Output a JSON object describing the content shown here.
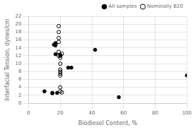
{
  "chart_data": {
    "type": "scatter",
    "xlabel": "Biodiesel Content, %",
    "ylabel": "Interfacial Tension, dynes/cm",
    "series": [
      {
        "name": "All samples",
        "color": "#000000",
        "marker": "filled",
        "x": [
          10,
          15,
          15,
          16,
          17,
          17,
          17,
          17,
          18,
          20,
          20,
          25,
          27,
          42,
          57,
          100
        ],
        "values": [
          3.0,
          2.5,
          2.6,
          14.8,
          15.0,
          15.2,
          14.6,
          12.4,
          2.6,
          12.0,
          12.2,
          9.0,
          9.0,
          13.5,
          1.5,
          7.0
        ]
      },
      {
        "name": "Nominally B20",
        "color": "#000000",
        "marker": "open",
        "x": [
          19,
          19,
          19,
          19,
          19,
          19,
          20,
          20,
          20,
          20,
          20,
          20,
          20,
          20,
          21,
          21
        ],
        "values": [
          19.5,
          18.0,
          16.5,
          15.5,
          13.0,
          12.0,
          11.5,
          10.0,
          8.5,
          8.0,
          7.5,
          7.0,
          4.0,
          3.0,
          12.5,
          2.7
        ]
      }
    ],
    "xlim": [
      0,
      100
    ],
    "ylim": [
      0,
      22
    ],
    "xticks": [
      0,
      20,
      40,
      60,
      80,
      100
    ],
    "yticks": [
      0,
      2,
      4,
      6,
      8,
      10,
      12,
      14,
      16,
      18,
      20,
      22
    ],
    "grid": true,
    "legend": "upper right"
  }
}
